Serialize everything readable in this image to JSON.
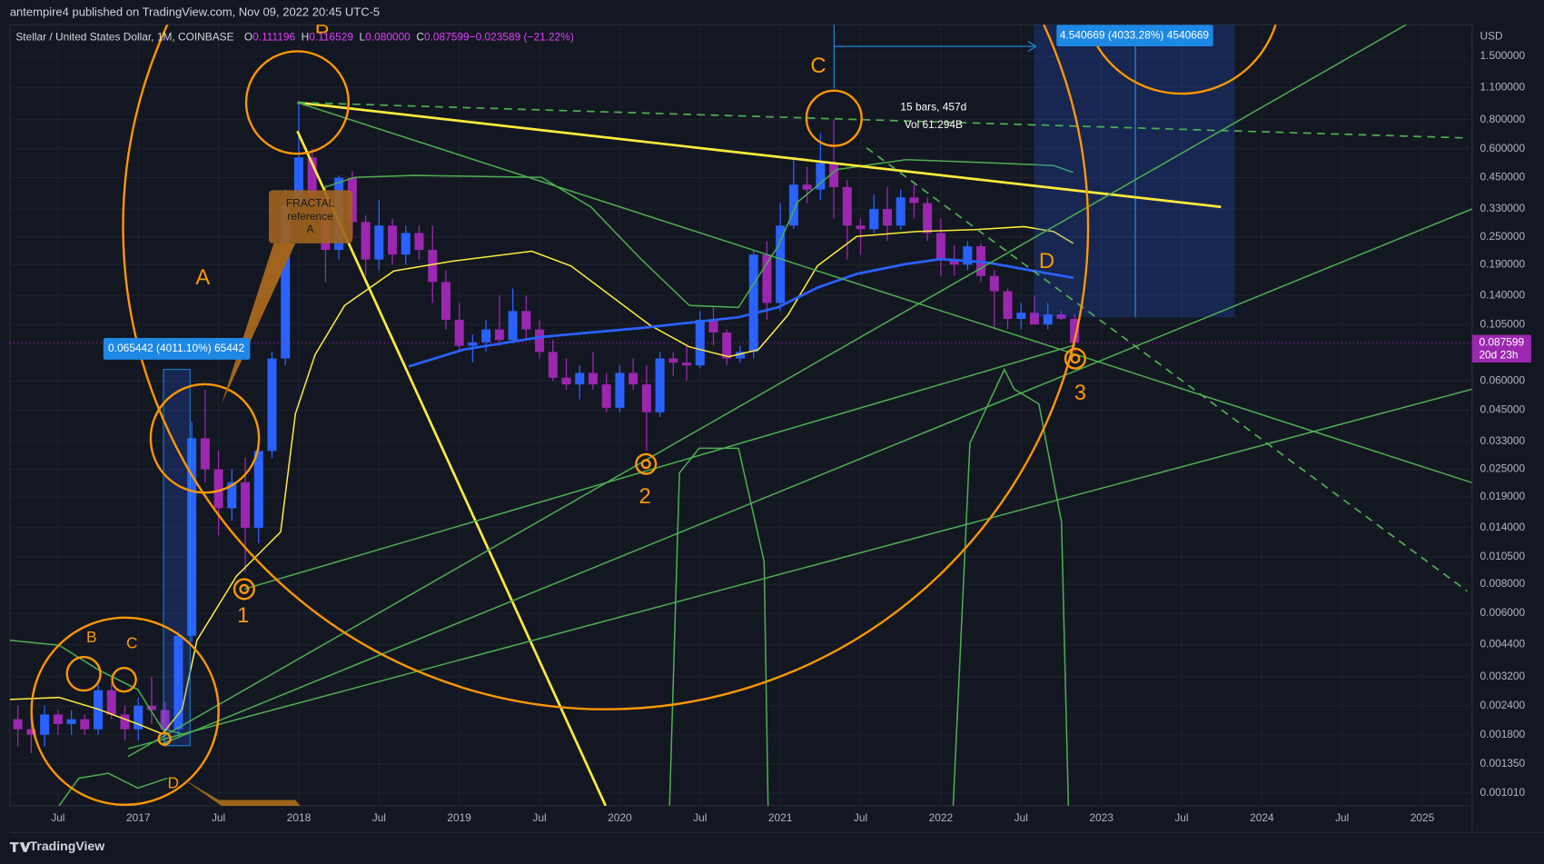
{
  "header": {
    "publisher_line": "antempire4 published on TradingView.com, Nov 09, 2022 20:45 UTC-5",
    "brand": "TradingView"
  },
  "chart_data": {
    "type": "candlestick",
    "title": "Stellar / United States Dollar, 1M, COINBASE",
    "legend": [
      {
        "key": "O",
        "text": "0.111196"
      },
      {
        "key": "H",
        "text": "0.116529"
      },
      {
        "key": "L",
        "text": "0.080000"
      },
      {
        "key": "C",
        "text": "0.087599"
      },
      {
        "key": "",
        "text": "−0.023589 (−21.22%)"
      }
    ],
    "y_axis_label": "USD",
    "log_scale": true,
    "grid": true,
    "up_color": "#2962ff",
    "down_color": "#9c27b0",
    "x": [
      "2016-04",
      "2016-05",
      "2016-06",
      "2016-07",
      "2016-08",
      "2016-09",
      "2016-10",
      "2016-11",
      "2016-12",
      "2017-01",
      "2017-02",
      "2017-03",
      "2017-04",
      "2017-05",
      "2017-06",
      "2017-07",
      "2017-08",
      "2017-09",
      "2017-10",
      "2017-11",
      "2017-12",
      "2018-01",
      "2018-02",
      "2018-03",
      "2018-04",
      "2018-05",
      "2018-06",
      "2018-07",
      "2018-08",
      "2018-09",
      "2018-10",
      "2018-11",
      "2018-12",
      "2019-01",
      "2019-02",
      "2019-03",
      "2019-04",
      "2019-05",
      "2019-06",
      "2019-07",
      "2019-08",
      "2019-09",
      "2019-10",
      "2019-11",
      "2019-12",
      "2020-01",
      "2020-02",
      "2020-03",
      "2020-04",
      "2020-05",
      "2020-06",
      "2020-07",
      "2020-08",
      "2020-09",
      "2020-10",
      "2020-11",
      "2020-12",
      "2021-01",
      "2021-02",
      "2021-03",
      "2021-04",
      "2021-05",
      "2021-06",
      "2021-07",
      "2021-08",
      "2021-09",
      "2021-10",
      "2021-11",
      "2021-12",
      "2022-01",
      "2022-02",
      "2022-03",
      "2022-04",
      "2022-05",
      "2022-06",
      "2022-07",
      "2022-08",
      "2022-09",
      "2022-10",
      "2022-11"
    ],
    "open": [
      0.0021,
      0.0019,
      0.0018,
      0.0022,
      0.002,
      0.0021,
      0.0019,
      0.0028,
      0.0022,
      0.0019,
      0.0024,
      0.0023,
      0.0019,
      0.0048,
      0.034,
      0.025,
      0.017,
      0.022,
      0.014,
      0.03,
      0.075,
      0.34,
      0.55,
      0.37,
      0.22,
      0.45,
      0.29,
      0.2,
      0.28,
      0.21,
      0.26,
      0.22,
      0.16,
      0.11,
      0.085,
      0.088,
      0.1,
      0.09,
      0.12,
      0.1,
      0.08,
      0.062,
      0.058,
      0.065,
      0.058,
      0.046,
      0.065,
      0.058,
      0.044,
      0.075,
      0.072,
      0.07,
      0.11,
      0.097,
      0.075,
      0.08,
      0.21,
      0.13,
      0.28,
      0.42,
      0.4,
      0.52,
      0.41,
      0.28,
      0.27,
      0.33,
      0.28,
      0.37,
      0.35,
      0.26,
      0.2,
      0.19,
      0.228,
      0.17,
      0.146,
      0.111,
      0.118,
      0.105,
      0.116,
      0.111196
    ],
    "high": [
      0.0024,
      0.0022,
      0.0024,
      0.0023,
      0.0023,
      0.0022,
      0.0031,
      0.003,
      0.0024,
      0.0026,
      0.0032,
      0.0025,
      0.005,
      0.04,
      0.055,
      0.03,
      0.025,
      0.028,
      0.032,
      0.08,
      0.4,
      0.94,
      0.6,
      0.42,
      0.46,
      0.48,
      0.31,
      0.36,
      0.3,
      0.28,
      0.28,
      0.28,
      0.18,
      0.13,
      0.095,
      0.11,
      0.14,
      0.15,
      0.14,
      0.11,
      0.09,
      0.075,
      0.07,
      0.08,
      0.065,
      0.07,
      0.075,
      0.07,
      0.08,
      0.08,
      0.085,
      0.12,
      0.125,
      0.1,
      0.085,
      0.22,
      0.24,
      0.35,
      0.55,
      0.5,
      0.7,
      0.8,
      0.44,
      0.3,
      0.38,
      0.41,
      0.4,
      0.42,
      0.37,
      0.3,
      0.23,
      0.24,
      0.235,
      0.18,
      0.15,
      0.13,
      0.14,
      0.13,
      0.12,
      0.116529
    ],
    "low": [
      0.0016,
      0.0015,
      0.0016,
      0.0018,
      0.0018,
      0.0018,
      0.0018,
      0.0021,
      0.0017,
      0.0017,
      0.002,
      0.0016,
      0.0018,
      0.0045,
      0.022,
      0.013,
      0.015,
      0.009,
      0.012,
      0.028,
      0.07,
      0.3,
      0.28,
      0.16,
      0.2,
      0.25,
      0.17,
      0.18,
      0.19,
      0.19,
      0.2,
      0.13,
      0.1,
      0.08,
      0.072,
      0.08,
      0.085,
      0.087,
      0.09,
      0.075,
      0.06,
      0.055,
      0.05,
      0.055,
      0.044,
      0.044,
      0.055,
      0.03,
      0.042,
      0.063,
      0.06,
      0.068,
      0.085,
      0.07,
      0.072,
      0.075,
      0.11,
      0.12,
      0.27,
      0.35,
      0.36,
      0.3,
      0.2,
      0.21,
      0.26,
      0.24,
      0.27,
      0.3,
      0.24,
      0.17,
      0.17,
      0.18,
      0.16,
      0.1,
      0.1,
      0.1,
      0.11,
      0.1,
      0.11,
      0.08
    ],
    "close": [
      0.0019,
      0.0018,
      0.0022,
      0.002,
      0.0021,
      0.0019,
      0.0028,
      0.0022,
      0.0019,
      0.0024,
      0.0023,
      0.0019,
      0.0048,
      0.034,
      0.025,
      0.017,
      0.022,
      0.014,
      0.03,
      0.075,
      0.34,
      0.55,
      0.37,
      0.22,
      0.45,
      0.29,
      0.2,
      0.28,
      0.21,
      0.26,
      0.22,
      0.16,
      0.11,
      0.085,
      0.088,
      0.1,
      0.09,
      0.12,
      0.1,
      0.08,
      0.062,
      0.058,
      0.065,
      0.058,
      0.046,
      0.065,
      0.058,
      0.044,
      0.075,
      0.072,
      0.07,
      0.11,
      0.097,
      0.075,
      0.08,
      0.21,
      0.13,
      0.28,
      0.42,
      0.4,
      0.52,
      0.41,
      0.28,
      0.27,
      0.33,
      0.28,
      0.37,
      0.35,
      0.26,
      0.2,
      0.19,
      0.228,
      0.17,
      0.146,
      0.111,
      0.118,
      0.105,
      0.116,
      0.111,
      0.087599
    ],
    "xlim": [
      2016.2,
      2025.31
    ],
    "xticks": [
      {
        "value": 2016.5,
        "label": "Jul"
      },
      2017,
      {
        "value": 2017.5,
        "label": "Jul"
      },
      2018,
      {
        "value": 2018.5,
        "label": "Jul"
      },
      2019,
      {
        "value": 2019.5,
        "label": "Jul"
      },
      2020,
      {
        "value": 2020.5,
        "label": "Jul"
      },
      2021,
      {
        "value": 2021.5,
        "label": "Jul"
      },
      2022,
      {
        "value": 2022.5,
        "label": "Jul"
      },
      2023,
      {
        "value": 2023.5,
        "label": "Jul"
      },
      2024,
      {
        "value": 2024.5,
        "label": "Jul"
      },
      2025
    ],
    "ylim": [
      0.00089,
      2.05
    ],
    "yticks": [
      {
        "value": 1.5,
        "label": "1.500000"
      },
      {
        "value": 1.1,
        "label": "1.100000"
      },
      {
        "value": 0.8,
        "label": "0.800000"
      },
      {
        "value": 0.6,
        "label": "0.600000"
      },
      {
        "value": 0.45,
        "label": "0.450000"
      },
      {
        "value": 0.33,
        "label": "0.330000"
      },
      {
        "value": 0.25,
        "label": "0.250000"
      },
      {
        "value": 0.19,
        "label": "0.190000"
      },
      {
        "value": 0.14,
        "label": "0.140000"
      },
      {
        "value": 0.105,
        "label": "0.105000"
      },
      {
        "value": 0.06,
        "label": "0.060000"
      },
      {
        "value": 0.045,
        "label": "0.045000"
      },
      {
        "value": 0.033,
        "label": "0.033000"
      },
      {
        "value": 0.025,
        "label": "0.025000"
      },
      {
        "value": 0.019,
        "label": "0.019000"
      },
      {
        "value": 0.014,
        "label": "0.014000"
      },
      {
        "value": 0.0105,
        "label": "0.010500"
      },
      {
        "value": 0.008,
        "label": "0.008000"
      },
      {
        "value": 0.006,
        "label": "0.006000"
      },
      {
        "value": 0.0044,
        "label": "0.004400"
      },
      {
        "value": 0.0032,
        "label": "0.003200"
      },
      {
        "value": 0.0024,
        "label": "0.002400"
      },
      {
        "value": 0.0018,
        "label": "0.001800"
      },
      {
        "value": 0.00135,
        "label": "0.001350"
      },
      {
        "value": 0.00101,
        "label": "0.001010"
      }
    ],
    "last_price": 0.087599,
    "countdown": "20d 23h",
    "annotations": {
      "measure_left": "0.065442 (4011.10%) 65442",
      "measure_right": "4.540669 (4033.28%) 4540669",
      "bars_span": "15 bars, 457d",
      "volume_span": "Vol 61.294B",
      "callout": [
        "FRACTAL",
        "reference",
        "A"
      ],
      "wave_big": [
        "A",
        "B",
        "C",
        "D"
      ],
      "wave_small": [
        "B",
        "C",
        "D"
      ],
      "touches": [
        "1",
        "2",
        "3"
      ]
    }
  }
}
